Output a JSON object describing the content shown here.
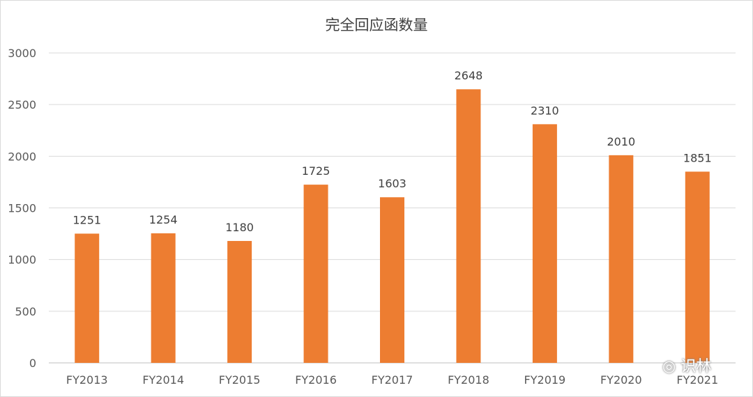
{
  "chart_data": {
    "type": "bar",
    "title": "完全回应函数量",
    "categories": [
      "FY2013",
      "FY2014",
      "FY2015",
      "FY2016",
      "FY2017",
      "FY2018",
      "FY2019",
      "FY2020",
      "FY2021"
    ],
    "values": [
      1251,
      1254,
      1180,
      1725,
      1603,
      2648,
      2310,
      2010,
      1851
    ],
    "ylim": [
      0,
      3000
    ],
    "yticks": [
      0,
      500,
      1000,
      1500,
      2000,
      2500,
      3000
    ],
    "bar_color": "#ED7D31",
    "grid": true,
    "legend": "none"
  },
  "watermark": {
    "icon": "wechat-icon",
    "text": "识林"
  }
}
